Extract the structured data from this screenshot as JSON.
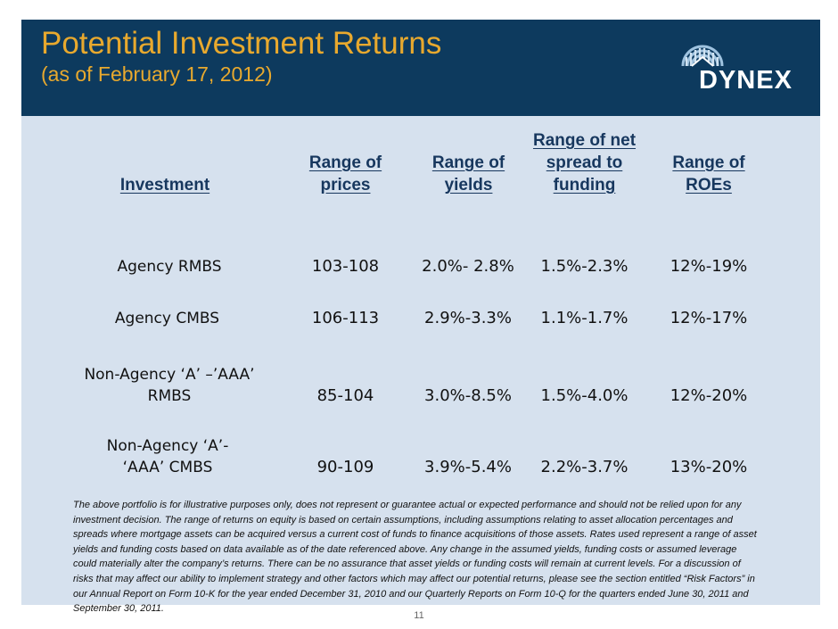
{
  "header": {
    "title": "Potential Investment Returns",
    "subtitle": "(as of February 17, 2012)",
    "logo_text": "DYNEX",
    "bg_color": "#0d3a5e",
    "title_color": "#e8a92e"
  },
  "table": {
    "headers": {
      "investment": "Investment",
      "prices": "Range of prices",
      "yields": "Range of yields",
      "spread": "Range of net spread to funding",
      "roes": "Range of ROEs"
    },
    "rows": [
      {
        "investment": "Agency RMBS",
        "prices": "103-108",
        "yields": "2.0%- 2.8%",
        "spread": "1.5%-2.3%",
        "roes": "12%-19%"
      },
      {
        "investment": "Agency CMBS",
        "prices": "106-113",
        "yields": "2.9%-3.3%",
        "spread": "1.1%-1.7%",
        "roes": "12%-17%"
      },
      {
        "investment": "Non-Agency ‘A’ –’AAA’ RMBS",
        "prices": "85-104",
        "yields": "3.0%-8.5%",
        "spread": "1.5%-4.0%",
        "roes": "12%-20%"
      },
      {
        "investment": "Non-Agency ‘A’- ‘AAA’ CMBS",
        "prices": "90-109",
        "yields": "3.9%-5.4%",
        "spread": "2.2%-3.7%",
        "roes": "13%-20%"
      }
    ]
  },
  "disclaimer": "The above portfolio is for illustrative purposes only, does not represent or guarantee actual or expected performance and should not be relied upon for any investment decision. The range of returns on equity is based on certain assumptions, including assumptions relating to asset allocation percentages and spreads where mortgage assets can be acquired versus a current cost of funds to finance acquisitions of those assets. Rates used represent a range of asset yields and funding costs based on data available as of the date referenced above. Any change in the assumed yields, funding costs or assumed leverage could materially alter the company’s returns. There can be no assurance that asset yields or funding costs will remain at current levels. For a discussion of risks that may affect our ability to implement strategy and other factors which may affect our potential returns, please see the section entitled “Risk Factors” in our Annual Report on Form 10-K for the year ended December 31, 2010 and our Quarterly Reports on Form 10-Q for the quarters ended June 30, 2011 and September 30, 2011.",
  "page_number": "11"
}
